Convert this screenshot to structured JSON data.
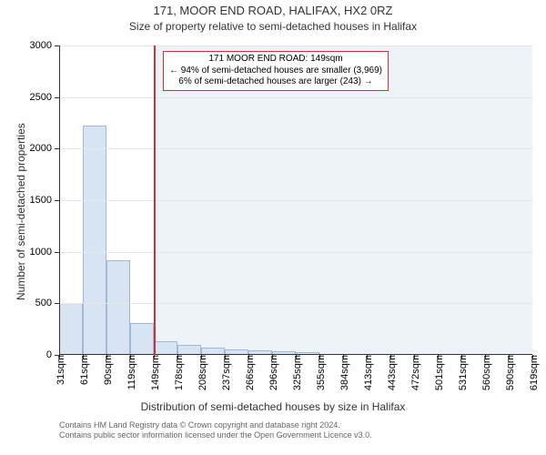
{
  "header": {
    "address_line": "171, MOOR END ROAD, HALIFAX, HX2 0RZ",
    "subtitle": "Size of property relative to semi-detached houses in Halifax"
  },
  "chart": {
    "type": "histogram",
    "ylabel": "Number of semi-detached properties",
    "xlabel": "Distribution of semi-detached houses by size in Halifax",
    "title_fontsize": 13,
    "subtitle_fontsize": 12,
    "axis_label_fontsize": 12,
    "tick_fontsize": 11,
    "callout_fontsize": 10,
    "attribution_fontsize": 9,
    "background_color": "#ffffff",
    "grid_color": "#e6e6e6",
    "axis_color": "#333333",
    "bar_fill": "#d7e4f4",
    "bar_stroke": "#9fb8d9",
    "reference_line_color": "#cc3333",
    "shade_right_color": "#eef3fa",
    "ylim": [
      0,
      3000
    ],
    "ytick_step": 500,
    "x_tick_labels": [
      "31sqm",
      "61sqm",
      "90sqm",
      "119sqm",
      "149sqm",
      "178sqm",
      "208sqm",
      "237sqm",
      "266sqm",
      "296sqm",
      "325sqm",
      "355sqm",
      "384sqm",
      "413sqm",
      "443sqm",
      "472sqm",
      "501sqm",
      "531sqm",
      "560sqm",
      "590sqm",
      "619sqm"
    ],
    "bars": [
      500,
      2220,
      920,
      310,
      130,
      100,
      70,
      55,
      45,
      35,
      30,
      0,
      0,
      0,
      0,
      0,
      0,
      0,
      0,
      0
    ],
    "reference_index": 4,
    "callout": {
      "line1": "171 MOOR END ROAD: 149sqm",
      "line2": "← 94% of semi-detached houses are smaller (3,969)",
      "line3": "6% of semi-detached houses are larger (243) →"
    }
  },
  "attribution": {
    "line1": "Contains HM Land Registry data © Crown copyright and database right 2024.",
    "line2": "Contains public sector information licensed under the Open Government Licence v3.0."
  }
}
